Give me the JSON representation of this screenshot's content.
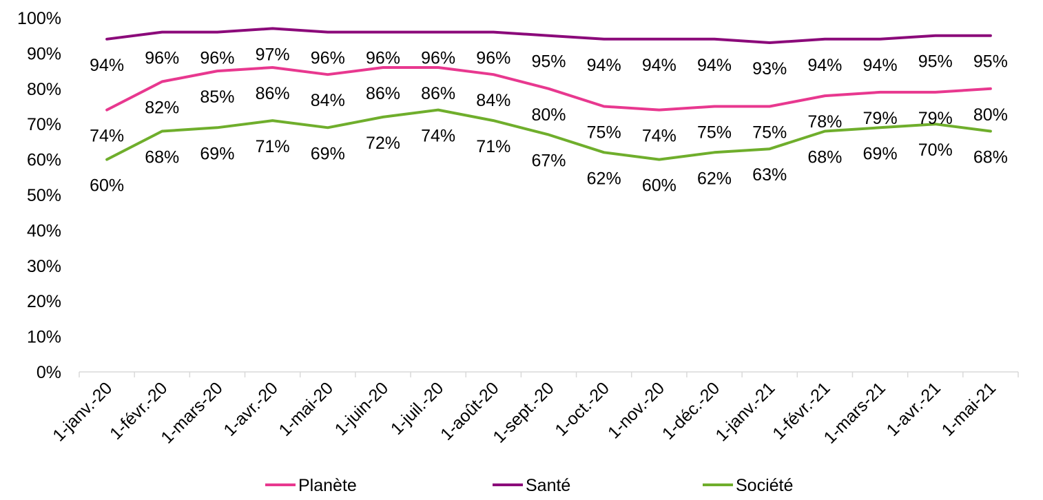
{
  "chart_data": {
    "type": "line",
    "categories": [
      "1-janv.-20",
      "1-févr.-20",
      "1-mars-20",
      "1-avr.-20",
      "1-mai-20",
      "1-juin-20",
      "1-juil.-20",
      "1-août-20",
      "1-sept.-20",
      "1-oct.-20",
      "1-nov.-20",
      "1-déc.-20",
      "1-janv.-21",
      "1-févr.-21",
      "1-mars-21",
      "1-avr.-21",
      "1-mai-21"
    ],
    "series": [
      {
        "name": "Planète",
        "color": "#E8388F",
        "values": [
          74,
          82,
          85,
          86,
          84,
          86,
          86,
          84,
          80,
          75,
          74,
          75,
          75,
          78,
          79,
          79,
          80
        ],
        "labels": [
          "74%",
          "82%",
          "85%",
          "86%",
          "84%",
          "86%",
          "86%",
          "84%",
          "80%",
          "75%",
          "74%",
          "75%",
          "75%",
          "78%",
          "79%",
          "79%",
          "80%"
        ]
      },
      {
        "name": "Santé",
        "color": "#8B0A7A",
        "values": [
          94,
          96,
          96,
          97,
          96,
          96,
          96,
          96,
          95,
          94,
          94,
          94,
          93,
          94,
          94,
          95,
          95
        ],
        "labels": [
          "94%",
          "96%",
          "96%",
          "97%",
          "96%",
          "96%",
          "96%",
          "96%",
          "95%",
          "94%",
          "94%",
          "94%",
          "93%",
          "94%",
          "94%",
          "95%",
          "95%"
        ]
      },
      {
        "name": "Société",
        "color": "#6FAE2C",
        "values": [
          60,
          68,
          69,
          71,
          69,
          72,
          74,
          71,
          67,
          62,
          60,
          62,
          63,
          68,
          69,
          70,
          68
        ],
        "labels": [
          "60%",
          "68%",
          "69%",
          "71%",
          "69%",
          "72%",
          "74%",
          "71%",
          "67%",
          "62%",
          "60%",
          "62%",
          "63%",
          "68%",
          "69%",
          "70%",
          "68%"
        ]
      }
    ],
    "yticks": [
      "0%",
      "10%",
      "20%",
      "30%",
      "40%",
      "50%",
      "60%",
      "70%",
      "80%",
      "90%",
      "100%"
    ],
    "ylim": [
      0,
      100
    ],
    "grid": false,
    "legend": "bottom",
    "title": "",
    "xlabel": "",
    "ylabel": ""
  }
}
